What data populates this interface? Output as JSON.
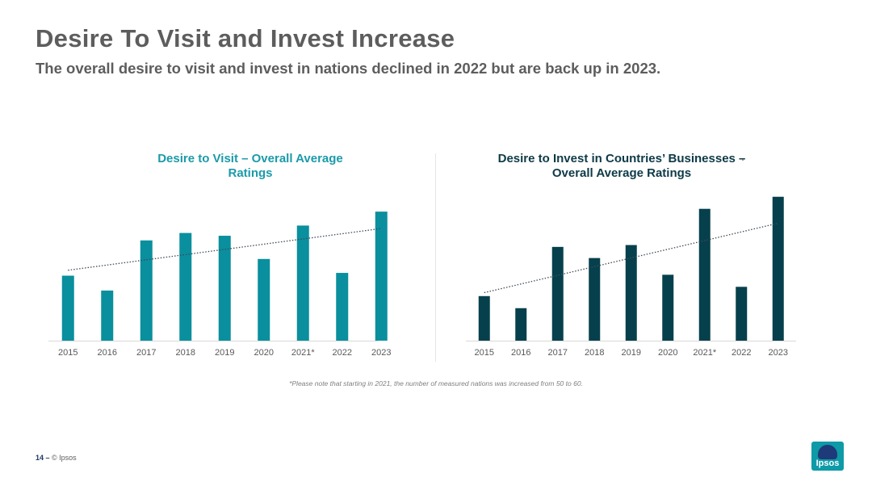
{
  "slide": {
    "title": "Desire To Visit and Invest Increase",
    "subtitle": "The overall desire to visit and invest in nations declined in 2022 but are back up in 2023.",
    "footnote": "*Please note that starting in 2021, the number of measured nations was increased from 50 to 60.",
    "page_number": "14",
    "footer_sep": " – ",
    "copyright": "© Ipsos",
    "logo_text": "Ipsos"
  },
  "colors": {
    "visit_bar": "#0a8f9e",
    "invest_bar": "#07404d",
    "visit_title": "#1b9aa9",
    "invest_title": "#0e3a47",
    "trendline": "#404a55"
  },
  "chart_data": [
    {
      "type": "bar",
      "title": "Desire to Visit – Overall Average Ratings",
      "categories": [
        "2015",
        "2016",
        "2017",
        "2018",
        "2019",
        "2020",
        "2021*",
        "2022",
        "2023"
      ],
      "values": [
        35,
        27,
        54,
        58,
        56.5,
        44,
        62,
        36.5,
        69.5
      ],
      "trendline": "linear, dotted",
      "ylim": [
        0,
        100
      ],
      "grid": false
    },
    {
      "type": "bar",
      "title": "Desire to Invest in Countries’ Businesses – Overall Average Ratings",
      "categories": [
        "2015",
        "2016",
        "2017",
        "2018",
        "2019",
        "2020",
        "2021*",
        "2022",
        "2023"
      ],
      "values": [
        24,
        17.5,
        50.5,
        44.5,
        51.5,
        35.5,
        71,
        29,
        77.5
      ],
      "trendline": "linear, dotted",
      "ylim": [
        0,
        100
      ],
      "grid": false
    }
  ]
}
